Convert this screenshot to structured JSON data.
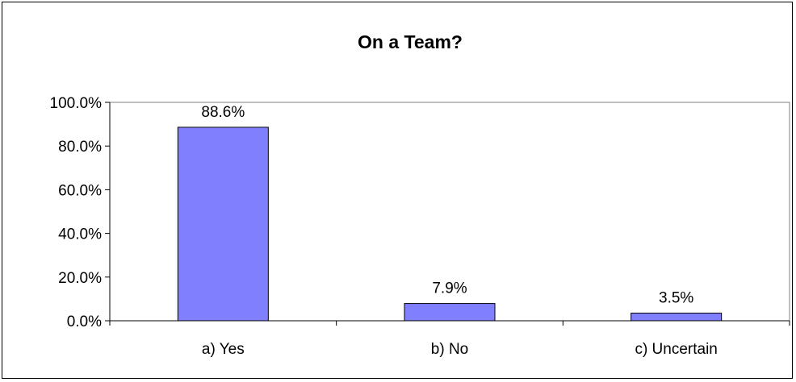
{
  "chart_data": {
    "type": "bar",
    "title": "On a Team?",
    "xlabel": "",
    "ylabel": "",
    "categories": [
      "a) Yes",
      "b) No",
      "c) Uncertain"
    ],
    "values": [
      88.6,
      7.9,
      3.5
    ],
    "data_labels": [
      "88.6%",
      "7.9%",
      "3.5%"
    ],
    "ylim": [
      0,
      100
    ],
    "yticks": [
      0,
      20,
      40,
      60,
      80,
      100
    ],
    "ytick_labels": [
      "0.0%",
      "20.0%",
      "40.0%",
      "60.0%",
      "80.0%",
      "100.0%"
    ],
    "grid": false,
    "legend": "none",
    "colors": {
      "bar_fill": "#8080FF",
      "bar_stroke": "#000000",
      "plot_border": "#808080"
    }
  }
}
